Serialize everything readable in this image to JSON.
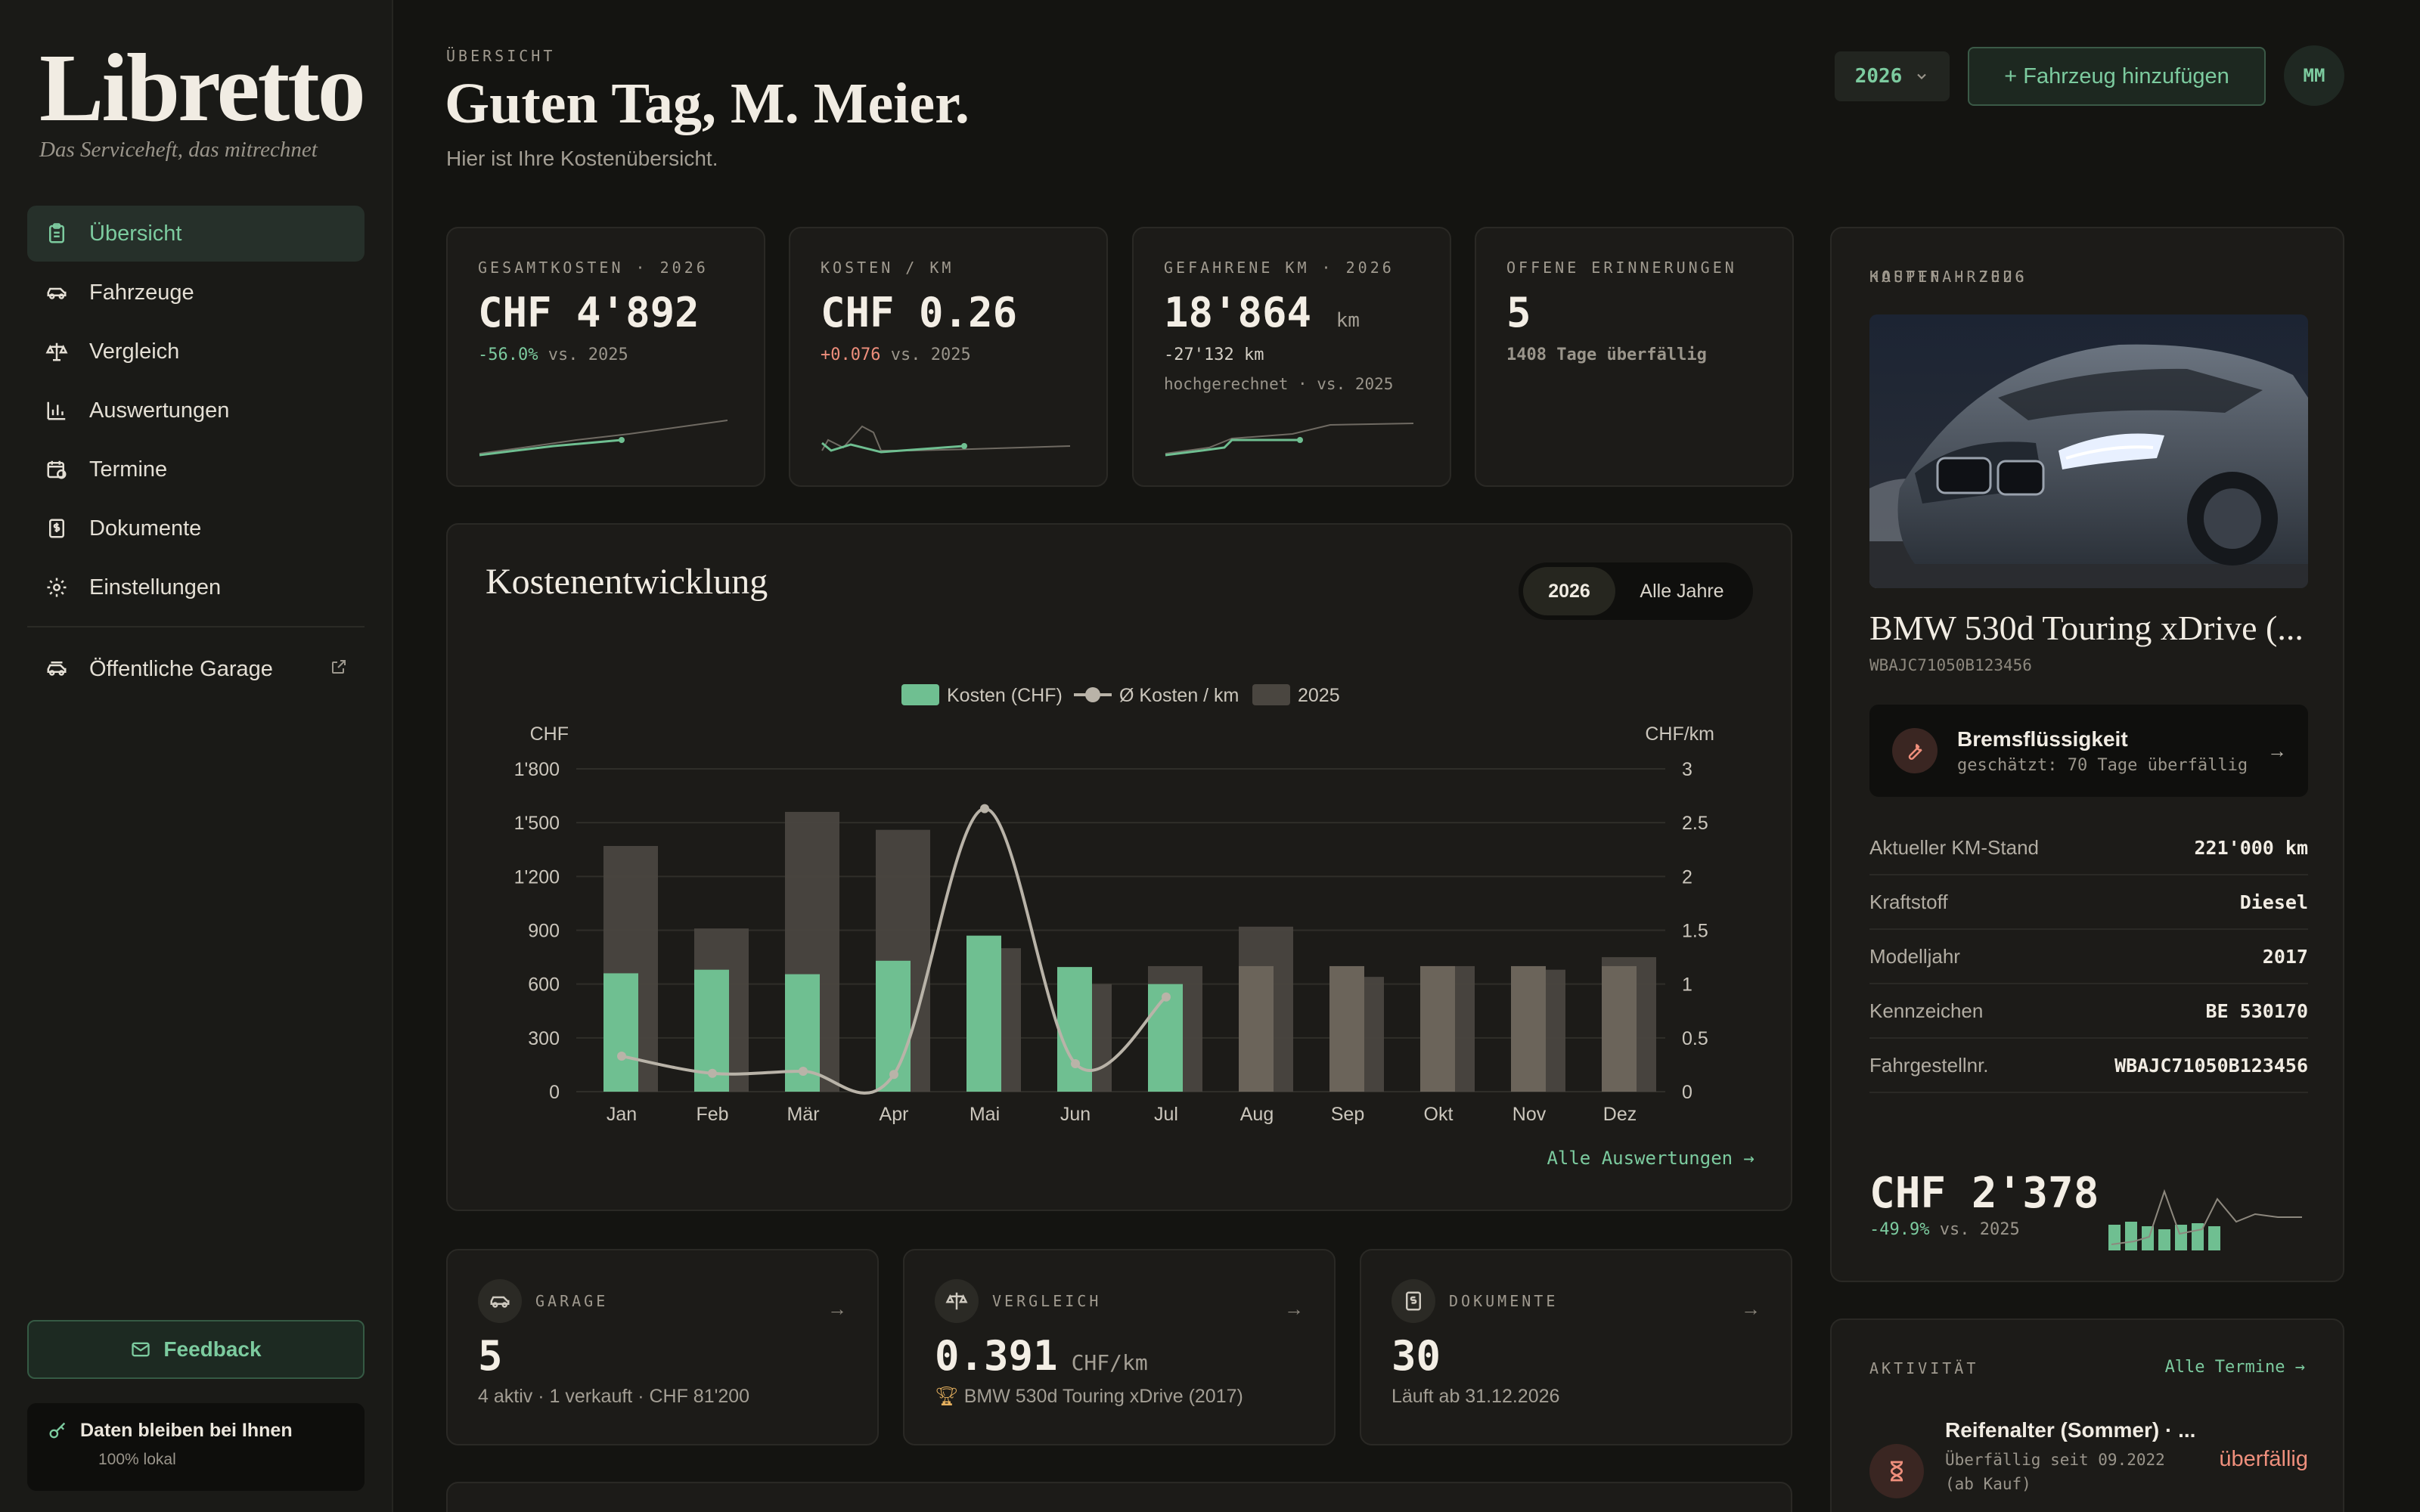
{
  "brand": {
    "name": "Libretto",
    "tagline": "Das Serviceheft, das mitrechnet"
  },
  "nav": {
    "items": [
      {
        "label": "Übersicht",
        "icon": "clipboard-icon",
        "active": true
      },
      {
        "label": "Fahrzeuge",
        "icon": "car-icon"
      },
      {
        "label": "Vergleich",
        "icon": "scale-icon"
      },
      {
        "label": "Auswertungen",
        "icon": "bar-chart-icon"
      },
      {
        "label": "Termine",
        "icon": "calendar-clock-icon"
      },
      {
        "label": "Dokumente",
        "icon": "document-dollar-icon"
      },
      {
        "label": "Einstellungen",
        "icon": "gear-icon"
      }
    ],
    "garage": {
      "label": "Öffentliche Garage",
      "icon": "garage-icon",
      "ext_icon": "external-link-icon"
    }
  },
  "sidebar_footer": {
    "feedback": "Feedback",
    "privacy_title": "Daten bleiben bei Ihnen",
    "privacy_sub": "100% lokal"
  },
  "header": {
    "eyebrow": "ÜBERSICHT",
    "greeting": "Guten Tag, M. Meier.",
    "subtitle": "Hier ist Ihre Kostenübersicht.",
    "year": "2026",
    "add_button": "+ Fahrzeug hinzufügen",
    "avatar": "MM"
  },
  "kpis": [
    {
      "label": "GESAMTKOSTEN · 2026",
      "value": "CHF 4'892",
      "delta": "-56.0%",
      "delta_suffix": " vs. 2025"
    },
    {
      "label": "KOSTEN / KM",
      "value": "CHF 0.26",
      "delta": "+0.076",
      "delta_suffix": " vs. 2025"
    },
    {
      "label": "GEFAHRENE KM · 2026",
      "value": "18'864",
      "unit": "km",
      "delta": "-27'132 km",
      "note": "hochgerechnet · vs. 2025"
    },
    {
      "label": "OFFENE ERINNERUNGEN",
      "value": "5",
      "note": "1408 Tage überfällig"
    }
  ],
  "chart_card": {
    "title": "Kostenentwicklung",
    "toggle": [
      "2026",
      "Alle Jahre"
    ],
    "link": "Alle Auswertungen →"
  },
  "chart_data": {
    "type": "bar",
    "categories": [
      "Jan",
      "Feb",
      "Mär",
      "Apr",
      "Mai",
      "Jun",
      "Jul",
      "Aug",
      "Sep",
      "Okt",
      "Nov",
      "Dez"
    ],
    "series": [
      {
        "name": "Kosten (CHF)",
        "type": "bar",
        "axis": "left",
        "color": "#6fbf91",
        "values": [
          660,
          680,
          655,
          730,
          870,
          695,
          600,
          700,
          700,
          700,
          700,
          700
        ]
      },
      {
        "name": "Ø Kosten / km",
        "type": "line",
        "axis": "right",
        "color": "#b9b3a8",
        "values": [
          0.33,
          0.17,
          0.19,
          0.16,
          2.63,
          0.26,
          0.88,
          null,
          null,
          null,
          null,
          null
        ]
      },
      {
        "name": "2025",
        "type": "bar",
        "axis": "left",
        "color": "#4a4640",
        "values": [
          1370,
          910,
          1560,
          1460,
          800,
          600,
          700,
          920,
          640,
          700,
          680,
          750
        ]
      }
    ],
    "ylabel": "CHF",
    "y2label": "CHF/km",
    "ylim": [
      0,
      1800
    ],
    "y2lim": [
      0,
      3
    ],
    "yticks": [
      "0",
      "300",
      "600",
      "900",
      "1'200",
      "1'500",
      "1'800"
    ],
    "y2ticks": [
      "0",
      "0.5",
      "1",
      "1.5",
      "2",
      "2.5",
      "3"
    ],
    "legend": "top-center",
    "grid": true
  },
  "mini_cards": [
    {
      "label": "GARAGE",
      "icon": "car-icon",
      "value": "5",
      "sub": "4 aktiv · 1 verkauft · CHF 81'200"
    },
    {
      "label": "VERGLEICH",
      "icon": "scale-icon",
      "value": "0.391",
      "unit": "CHF/km",
      "sub": "BMW 530d Touring xDrive (2017)",
      "sub_icon": "trophy-icon"
    },
    {
      "label": "DOKUMENTE",
      "icon": "document-dollar-icon",
      "value": "30",
      "sub": "Läuft ab 31.12.2026"
    }
  ],
  "main_vehicle": {
    "eyebrow": "HAUPTFAHRZEUG",
    "name": "BMW 530d Touring xDrive (...",
    "vin": "WBAJC71050B123456",
    "alert_title": "Bremsflüssigkeit",
    "alert_sub": "geschätzt: 70 Tage überfällig",
    "specs": [
      {
        "k": "Aktueller KM-Stand",
        "v": "221'000 km"
      },
      {
        "k": "Kraftstoff",
        "v": "Diesel"
      },
      {
        "k": "Modelljahr",
        "v": "2017"
      },
      {
        "k": "Kennzeichen",
        "v": "BE 530170"
      },
      {
        "k": "Fahrgestellnr.",
        "v": "WBAJC71050B123456"
      }
    ],
    "cost_label": "KOSTEN · 2026",
    "cost_value": "CHF 2'378",
    "cost_delta": "-49.9%",
    "cost_suffix": " vs. 2025"
  },
  "activity": {
    "eyebrow": "AKTIVITÄT",
    "link": "Alle Termine →",
    "item_title": "Reifenalter (Sommer) · ...",
    "item_sub1": "Überfällig seit 09.2022",
    "item_sub2": "(ab Kauf)",
    "item_status": "überfällig"
  },
  "colors": {
    "accent": "#7ccb9f",
    "danger": "#ef8f7c",
    "warning": "#e8b25f",
    "background": "#141411"
  }
}
